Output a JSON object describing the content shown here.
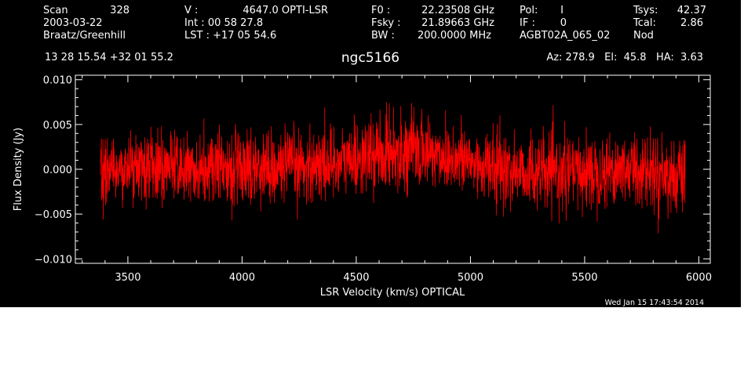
{
  "header": {
    "scan_label": "Scan",
    "scan_value": "328",
    "date": "2003-03-22",
    "observer": "Braatz/Greenhill",
    "coords": "13 28 15.54  +32 01 55.2",
    "v_label": "V   :",
    "v_value": "4647.0 OPTI-LSR",
    "int_text": "Int  :  00 58 27.8",
    "lst_text": "LST : +17 05 54.6",
    "f0_label": "F0   :",
    "f0_value": "22.23508 GHz",
    "fsky_label": "Fsky :",
    "fsky_value": "21.89663 GHz",
    "bw_label": "BW   :",
    "bw_value": "200.0000 MHz",
    "pol_label": "Pol:",
    "pol_value": "I",
    "if_label": "IF :",
    "if_value": "0",
    "project": "AGBT02A_065_02",
    "tsys_label": "Tsys:",
    "tsys_value": "42.37",
    "tcal_label": "Tcal:",
    "tcal_value": "2.86",
    "mode": "Nod",
    "source": "ngc5166",
    "az_el_ha": "Az: 278.9   El:  45.8   HA:  3.63"
  },
  "timestamp": "Wed Jan 15 17:43:54 2014",
  "colors": {
    "background": "#000000",
    "foreground": "#ffffff",
    "spectrum": "#ff0000"
  },
  "chart_data": {
    "type": "line",
    "title": "",
    "xlabel": "LSR Velocity (km/s) OPTICAL",
    "ylabel": "Flux Density (Jy)",
    "xlim": [
      3270,
      6050
    ],
    "ylim": [
      -0.0105,
      0.0105
    ],
    "x_ticks": [
      3500,
      4000,
      4500,
      5000,
      5500,
      6000
    ],
    "x_tick_labels": [
      "3500",
      "4000",
      "4500",
      "5000",
      "5500",
      "6000"
    ],
    "y_ticks": [
      -0.01,
      -0.005,
      0.0,
      0.005,
      0.01
    ],
    "y_tick_labels": [
      "−0.010",
      "−0.005",
      "0.000",
      "0.005",
      "0.010"
    ],
    "series": [
      {
        "color": "#ff0000",
        "x": [
          3380,
          3450,
          3550,
          3650,
          3750,
          3850,
          3950,
          4050,
          4150,
          4250,
          4350,
          4450,
          4550,
          4650,
          4750,
          4850,
          4950,
          5050,
          5150,
          5250,
          5350,
          5450,
          5550,
          5650,
          5750,
          5850,
          5940
        ],
        "y": [
          -0.0003,
          0.0001,
          0.0002,
          0.0003,
          0.0,
          -0.0002,
          0.0001,
          0.0003,
          0.0002,
          0.0004,
          0.0006,
          0.0009,
          0.0014,
          0.0019,
          0.0022,
          0.0017,
          0.0011,
          0.0004,
          0.0,
          -0.0003,
          -0.0005,
          -0.0004,
          -0.0002,
          0.0001,
          0.0,
          -0.0005,
          -0.0012
        ],
        "noise_rms": 0.002,
        "channel_spacing": 1.0
      }
    ],
    "grid": false,
    "legend": "none"
  }
}
